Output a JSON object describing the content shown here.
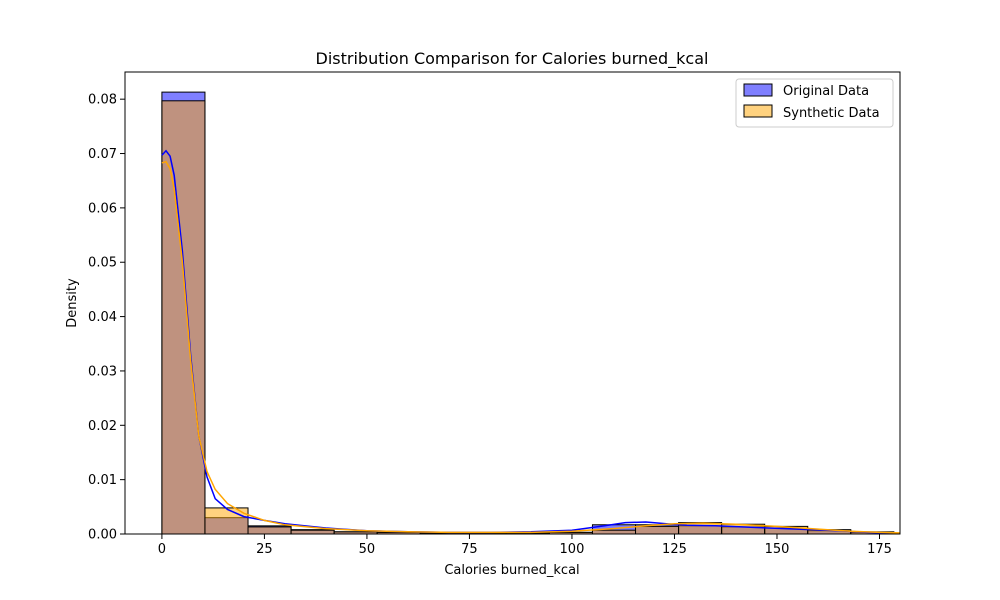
{
  "chart_data": {
    "type": "histogram",
    "title": "Distribution Comparison for Calories burned_kcal",
    "xlabel": "Calories burned_kcal",
    "ylabel": "Density",
    "xlim": [
      -9,
      180
    ],
    "ylim": [
      0,
      0.085
    ],
    "xticks": [
      0,
      25,
      50,
      75,
      100,
      125,
      150,
      175
    ],
    "yticks": [
      0.0,
      0.01,
      0.02,
      0.03,
      0.04,
      0.05,
      0.06,
      0.07,
      0.08
    ],
    "ytick_labels": [
      "0.00",
      "0.01",
      "0.02",
      "0.03",
      "0.04",
      "0.05",
      "0.06",
      "0.07",
      "0.08"
    ],
    "grid": false,
    "legend_position": "top-right",
    "series": [
      {
        "name": "Original Data",
        "color": "#0000ff",
        "bins": [
          {
            "x0": 0,
            "x1": 10.5,
            "density": 0.0813
          },
          {
            "x0": 10.5,
            "x1": 21,
            "density": 0.003
          },
          {
            "x0": 21,
            "x1": 31.5,
            "density": 0.0015
          },
          {
            "x0": 31.5,
            "x1": 42,
            "density": 0.0008
          },
          {
            "x0": 42,
            "x1": 52.5,
            "density": 0.0004
          },
          {
            "x0": 52.5,
            "x1": 63,
            "density": 0.0003
          },
          {
            "x0": 63,
            "x1": 73.5,
            "density": 0.0002
          },
          {
            "x0": 73.5,
            "x1": 84,
            "density": 0.0002
          },
          {
            "x0": 84,
            "x1": 94.5,
            "density": 0.0002
          },
          {
            "x0": 94.5,
            "x1": 105,
            "density": 0.0003
          },
          {
            "x0": 105,
            "x1": 115.5,
            "density": 0.0017
          },
          {
            "x0": 115.5,
            "x1": 126,
            "density": 0.0017
          },
          {
            "x0": 126,
            "x1": 136.5,
            "density": 0.0015
          },
          {
            "x0": 136.5,
            "x1": 147,
            "density": 0.0013
          },
          {
            "x0": 147,
            "x1": 157.5,
            "density": 0.0011
          },
          {
            "x0": 157.5,
            "x1": 168,
            "density": 0.0006
          },
          {
            "x0": 168,
            "x1": 178.5,
            "density": 0.0003
          }
        ],
        "kde": [
          [
            0,
            0.0697
          ],
          [
            1,
            0.0705
          ],
          [
            2,
            0.0695
          ],
          [
            3,
            0.066
          ],
          [
            5,
            0.052
          ],
          [
            7,
            0.033
          ],
          [
            9,
            0.018
          ],
          [
            11,
            0.0105
          ],
          [
            13,
            0.0065
          ],
          [
            16,
            0.0045
          ],
          [
            20,
            0.0032
          ],
          [
            25,
            0.0025
          ],
          [
            30,
            0.0019
          ],
          [
            40,
            0.0011
          ],
          [
            50,
            0.0006
          ],
          [
            60,
            0.0004
          ],
          [
            70,
            0.0003
          ],
          [
            80,
            0.0003
          ],
          [
            90,
            0.0004
          ],
          [
            100,
            0.0007
          ],
          [
            108,
            0.0015
          ],
          [
            113,
            0.0021
          ],
          [
            118,
            0.0022
          ],
          [
            123,
            0.0019
          ],
          [
            128,
            0.0016
          ],
          [
            135,
            0.0015
          ],
          [
            145,
            0.0012
          ],
          [
            155,
            0.0009
          ],
          [
            165,
            0.0006
          ],
          [
            172,
            0.0003
          ],
          [
            180,
            0.0001
          ]
        ]
      },
      {
        "name": "Synthetic Data",
        "color": "#ffa500",
        "bins": [
          {
            "x0": 0,
            "x1": 10.5,
            "density": 0.0797
          },
          {
            "x0": 10.5,
            "x1": 21,
            "density": 0.0048
          },
          {
            "x0": 21,
            "x1": 31.5,
            "density": 0.0013
          },
          {
            "x0": 31.5,
            "x1": 42,
            "density": 0.0007
          },
          {
            "x0": 42,
            "x1": 52.5,
            "density": 0.0004
          },
          {
            "x0": 52.5,
            "x1": 63,
            "density": 0.0003
          },
          {
            "x0": 63,
            "x1": 73.5,
            "density": 0.0002
          },
          {
            "x0": 73.5,
            "x1": 84,
            "density": 0.0002
          },
          {
            "x0": 84,
            "x1": 94.5,
            "density": 0.0002
          },
          {
            "x0": 94.5,
            "x1": 105,
            "density": 0.0003
          },
          {
            "x0": 105,
            "x1": 115.5,
            "density": 0.0007
          },
          {
            "x0": 115.5,
            "x1": 126,
            "density": 0.0014
          },
          {
            "x0": 126,
            "x1": 136.5,
            "density": 0.0021
          },
          {
            "x0": 136.5,
            "x1": 147,
            "density": 0.0018
          },
          {
            "x0": 147,
            "x1": 157.5,
            "density": 0.0014
          },
          {
            "x0": 157.5,
            "x1": 168,
            "density": 0.0008
          },
          {
            "x0": 168,
            "x1": 178.5,
            "density": 0.0004
          }
        ],
        "kde": [
          [
            0,
            0.0683
          ],
          [
            1,
            0.0685
          ],
          [
            2,
            0.0672
          ],
          [
            3,
            0.0635
          ],
          [
            5,
            0.05
          ],
          [
            7,
            0.032
          ],
          [
            9,
            0.018
          ],
          [
            11,
            0.0115
          ],
          [
            13,
            0.0082
          ],
          [
            16,
            0.0056
          ],
          [
            20,
            0.0038
          ],
          [
            25,
            0.0025
          ],
          [
            30,
            0.0017
          ],
          [
            40,
            0.001
          ],
          [
            50,
            0.0006
          ],
          [
            60,
            0.0004
          ],
          [
            70,
            0.0003
          ],
          [
            80,
            0.0003
          ],
          [
            90,
            0.0003
          ],
          [
            100,
            0.0005
          ],
          [
            110,
            0.001
          ],
          [
            118,
            0.0015
          ],
          [
            125,
            0.0019
          ],
          [
            132,
            0.002
          ],
          [
            140,
            0.0018
          ],
          [
            150,
            0.0014
          ],
          [
            160,
            0.0009
          ],
          [
            168,
            0.0005
          ],
          [
            175,
            0.0003
          ],
          [
            180,
            0.0002
          ]
        ]
      }
    ]
  }
}
